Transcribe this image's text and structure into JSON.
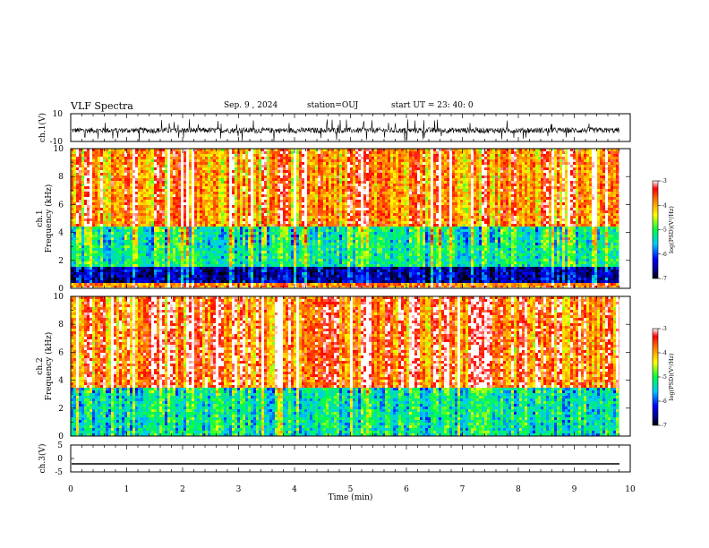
{
  "header": {
    "title": "VLF Spectra",
    "date": "Sep. 9 , 2024",
    "station": "station=OUJ",
    "start_ut": "start UT =  23: 40: 0"
  },
  "chart_data": [
    {
      "type": "line",
      "panel": "ch1-waveform",
      "ylabel": "ch.1(V)",
      "ytick_labels": [
        "10",
        "-10"
      ],
      "ylim": [
        -10,
        10
      ],
      "xlim": [
        0,
        10
      ],
      "trace_range_approx": [
        -4.5,
        1
      ],
      "trace_center_approx": -2
    },
    {
      "type": "heatmap",
      "panel": "ch1-spectrogram",
      "ylabel": "ch.1\nFrequency (kHz)",
      "yticks": [
        0,
        2,
        4,
        6,
        8,
        10
      ],
      "ylim": [
        0,
        10
      ],
      "xlim": [
        0,
        9.8
      ],
      "colorbar": {
        "label": "log(PSD)(V²/Hz)",
        "range": [
          -7,
          -3
        ],
        "ticks": [
          -3,
          -4,
          -5,
          -6,
          -7
        ]
      },
      "description_bands": [
        {
          "freq_khz": [
            0.4,
            1.6
          ],
          "log_psd_approx": -6.5
        },
        {
          "freq_khz": [
            1.6,
            4.5
          ],
          "log_psd_approx": -5.2
        },
        {
          "freq_khz": [
            4.5,
            10
          ],
          "log_psd_approx": -3.8
        }
      ]
    },
    {
      "type": "heatmap",
      "panel": "ch2-spectrogram",
      "ylabel": "ch.2\nFrequency (kHz)",
      "yticks": [
        0,
        2,
        4,
        6,
        8,
        10
      ],
      "ylim": [
        0,
        10
      ],
      "xlim": [
        0,
        9.8
      ],
      "colorbar": {
        "label": "log(PSD)(V²/Hz)",
        "range": [
          -7,
          -3
        ],
        "ticks": [
          -3,
          -4,
          -5,
          -6,
          -7
        ]
      },
      "description_bands": [
        {
          "freq_khz": [
            0,
            3.5
          ],
          "log_psd_approx": -5.3
        },
        {
          "freq_khz": [
            3.5,
            10
          ],
          "log_psd_approx": -3.6
        }
      ]
    },
    {
      "type": "line",
      "panel": "ch3-waveform",
      "ylabel": "ch.3(V)",
      "yticks": [
        5,
        0,
        -5
      ],
      "ylim": [
        -5,
        5
      ],
      "xlim": [
        0,
        10
      ],
      "constant_value": -2
    }
  ],
  "xaxis": {
    "label": "Time (min)",
    "ticks": [
      0,
      1,
      2,
      3,
      4,
      5,
      6,
      7,
      8,
      9,
      10
    ]
  }
}
